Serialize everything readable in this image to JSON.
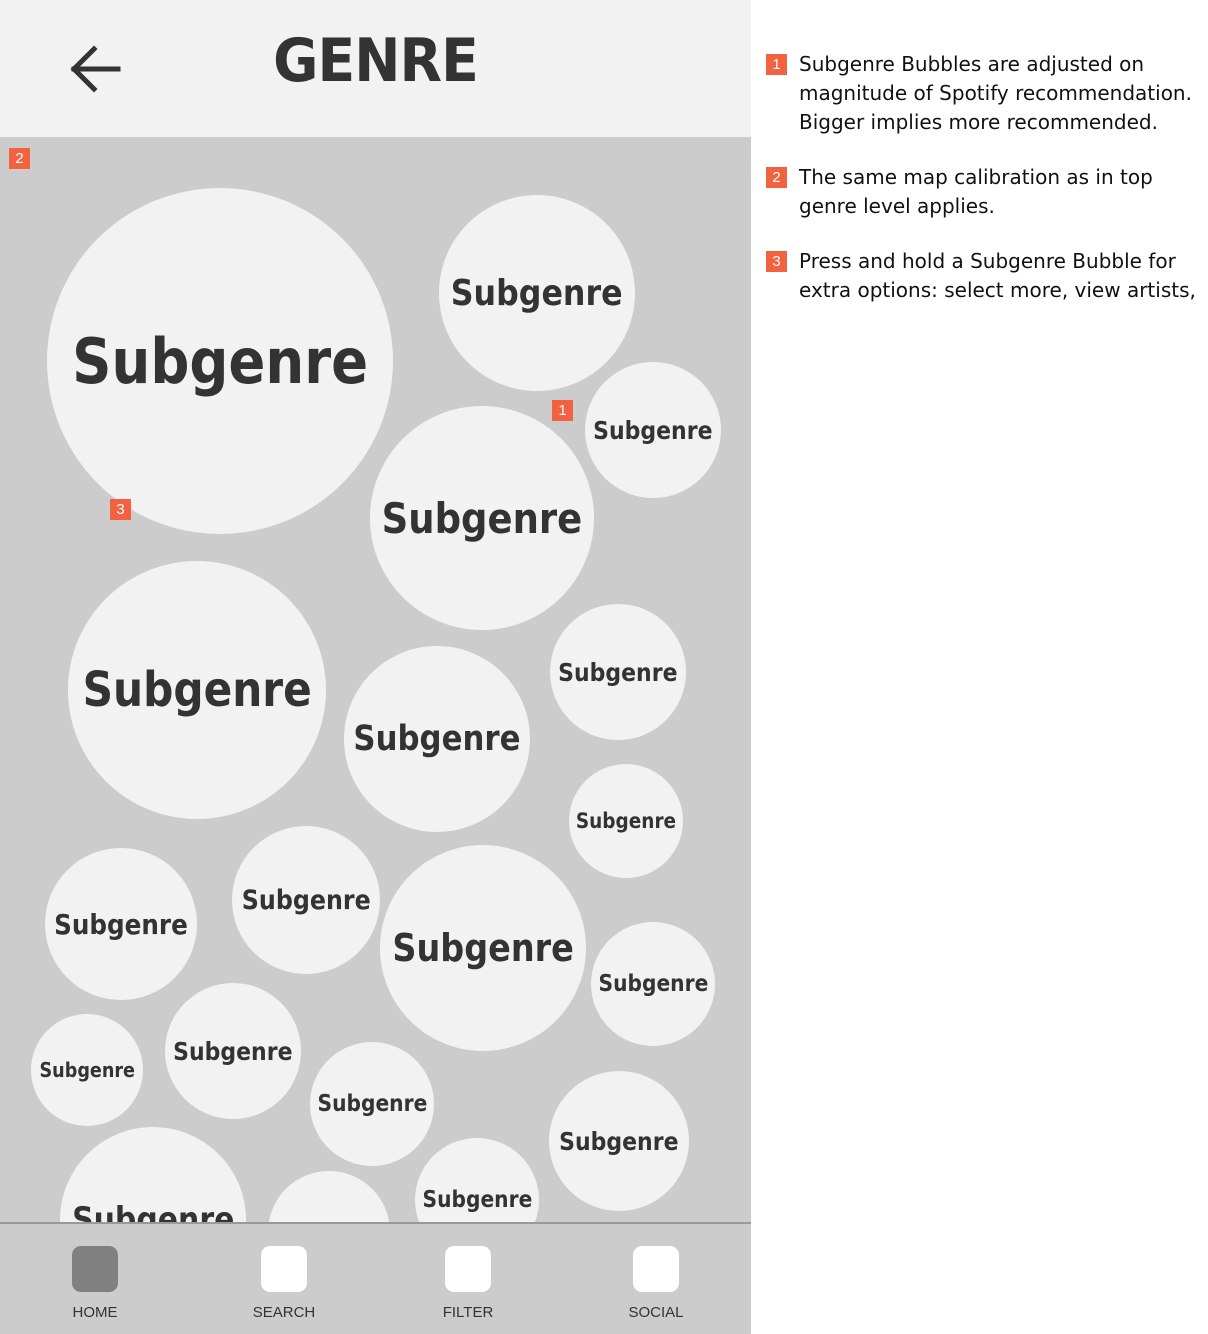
{
  "header": {
    "title": "GENRE",
    "back_icon": "arrow-left-icon"
  },
  "bubble_label": "Subgenre",
  "markers": [
    "1",
    "2",
    "3"
  ],
  "bottom_nav": {
    "items": [
      {
        "label": "HOME",
        "active": true
      },
      {
        "label": "SEARCH",
        "active": false
      },
      {
        "label": "FILTER",
        "active": false
      },
      {
        "label": "SOCIAL",
        "active": false
      }
    ]
  },
  "notes": [
    {
      "marker": "1",
      "text": "Subgenre Bubbles are adjusted on magnitude of Spotify recommendation. Bigger implies more recommended."
    },
    {
      "marker": "2",
      "text": "The same map calibration as in top genre level applies."
    },
    {
      "marker": "3",
      "text": "Press and hold a Subgenre Bubble for extra options: select more, view artists,"
    }
  ],
  "colors": {
    "marker": "#f26140",
    "header_bg": "#f2f2f2",
    "map_bg": "#cccccc",
    "bubble_bg": "#f2f2f2",
    "active_nav": "#808080"
  }
}
